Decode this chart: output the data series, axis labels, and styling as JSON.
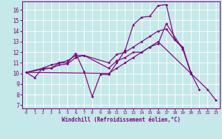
{
  "xlabel": "Windchill (Refroidissement éolien,°C)",
  "xlim": [
    -0.5,
    23.5
  ],
  "ylim": [
    6.7,
    16.8
  ],
  "yticks": [
    7,
    8,
    9,
    10,
    11,
    12,
    13,
    14,
    15,
    16
  ],
  "xticks": [
    0,
    1,
    2,
    3,
    4,
    5,
    6,
    7,
    8,
    9,
    10,
    11,
    12,
    13,
    14,
    15,
    16,
    17,
    18,
    19,
    20,
    21,
    22,
    23
  ],
  "background_color": "#c5e8e8",
  "grid_color": "#ffffff",
  "line_color": "#800080",
  "lines": [
    {
      "x": [
        0,
        1,
        2,
        3,
        4,
        5,
        6,
        7,
        8,
        9,
        10,
        11,
        12,
        13,
        14,
        15,
        16,
        17,
        18,
        19,
        20,
        21
      ],
      "y": [
        10.1,
        9.6,
        10.5,
        10.5,
        11.0,
        11.0,
        11.9,
        10.2,
        7.8,
        9.9,
        9.9,
        11.0,
        12.2,
        14.6,
        15.3,
        15.4,
        16.4,
        16.5,
        13.2,
        12.4,
        10.0,
        8.5
      ]
    },
    {
      "x": [
        0,
        2,
        3,
        4,
        5,
        6,
        7,
        10,
        11,
        12,
        13,
        14,
        15,
        16,
        17,
        18,
        19,
        20
      ],
      "y": [
        10.1,
        10.5,
        10.8,
        11.0,
        11.2,
        11.7,
        11.7,
        11.0,
        11.8,
        12.0,
        12.5,
        13.0,
        13.5,
        14.0,
        14.2,
        13.2,
        12.5,
        10.0
      ]
    },
    {
      "x": [
        0,
        2,
        3,
        4,
        5,
        6,
        7,
        10,
        11,
        12,
        13,
        14,
        15,
        16,
        17,
        19,
        20
      ],
      "y": [
        10.1,
        10.4,
        10.5,
        10.8,
        10.9,
        11.5,
        11.7,
        10.5,
        11.2,
        11.5,
        12.0,
        12.0,
        12.5,
        12.8,
        14.7,
        12.3,
        10.1
      ]
    },
    {
      "x": [
        0,
        10,
        11,
        12,
        13,
        14,
        15,
        16,
        22,
        23
      ],
      "y": [
        10.1,
        10.0,
        10.5,
        11.0,
        11.5,
        12.0,
        12.5,
        13.0,
        8.5,
        7.5
      ]
    }
  ]
}
